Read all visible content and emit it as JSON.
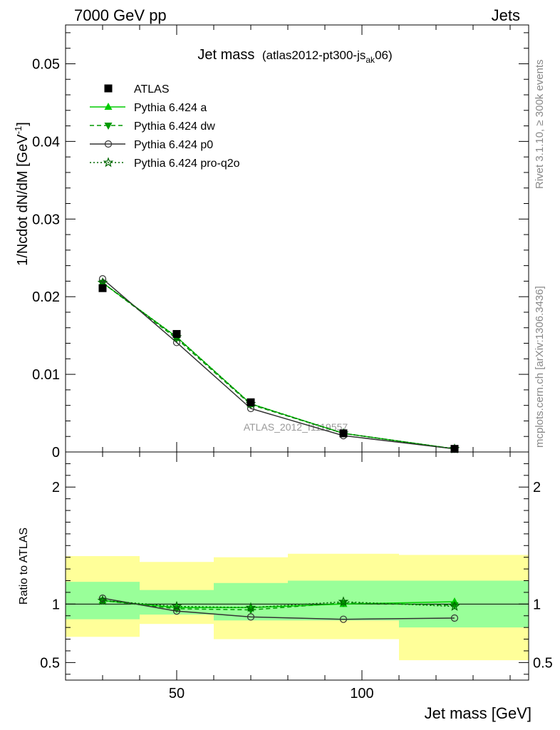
{
  "header": {
    "left": "7000 GeV pp",
    "right": "Jets"
  },
  "side": {
    "rivet": "Rivet 3.1.10, ≥ 300k events",
    "mcplots": "mcplots.cern.ch [arXiv:1306.3436]"
  },
  "watermark": "ATLAS_2012_I1119557",
  "colors": {
    "band_outer": "#ffff99",
    "band_inner": "#99ff99",
    "a": "#00cc00",
    "dw": "#009900",
    "p0": "#333333",
    "pro": "#006600"
  },
  "chart_data": [
    {
      "id": "main",
      "type": "line",
      "title": "Jet mass",
      "subtitle": "(atlas2012-pt300-js",
      "subtitle_sub": "ak",
      "subtitle_end": "06)",
      "ylabel": "1/Ncdot dN/dM [GeV",
      "ylabel_sup": "-1",
      "ylabel_end": "]",
      "xlim": [
        20,
        145
      ],
      "ylim": [
        0,
        0.055
      ],
      "yticks": [
        0,
        0.01,
        0.02,
        0.03,
        0.04,
        0.05
      ],
      "yticklabels": [
        "0",
        "0.01",
        "0.02",
        "0.03",
        "0.04",
        "0.05"
      ],
      "legend_position": "top-left",
      "series": [
        {
          "name": "ATLAS",
          "marker": "square",
          "x": [
            30,
            50,
            70,
            95,
            125
          ],
          "values": [
            0.0211,
            0.0152,
            0.0064,
            0.0024,
            0.0004
          ]
        },
        {
          "name": "Pythia 6.424 a",
          "marker": "triangle-up",
          "x": [
            30,
            50,
            70,
            95,
            125
          ],
          "values": [
            0.0218,
            0.0148,
            0.0062,
            0.0024,
            0.0004
          ]
        },
        {
          "name": "Pythia 6.424 dw",
          "marker": "triangle-down",
          "x": [
            30,
            50,
            70,
            95,
            125
          ],
          "values": [
            0.0218,
            0.0146,
            0.0061,
            0.0024,
            0.0004
          ]
        },
        {
          "name": "Pythia 6.424 p0",
          "marker": "circle",
          "x": [
            30,
            50,
            70,
            95,
            125
          ],
          "values": [
            0.0223,
            0.0141,
            0.0056,
            0.0021,
            0.0004
          ]
        },
        {
          "name": "Pythia 6.424 pro-q2o",
          "marker": "star",
          "x": [
            30,
            50,
            70,
            95,
            125
          ],
          "values": [
            0.0218,
            0.0148,
            0.0062,
            0.0024,
            0.0004
          ]
        }
      ]
    },
    {
      "id": "ratio",
      "type": "line",
      "ylabel": "Ratio to ATLAS",
      "xlabel": "Jet mass [GeV]",
      "xlim": [
        20,
        145
      ],
      "ylim": [
        0.35,
        2.3
      ],
      "yticks": [
        0.5,
        1,
        2
      ],
      "yticklabels": [
        "0.5",
        "1",
        "2"
      ],
      "xticks": [
        50,
        100
      ],
      "xticklabels": [
        "50",
        "100"
      ],
      "bins": [
        [
          20,
          40
        ],
        [
          40,
          60
        ],
        [
          60,
          80
        ],
        [
          80,
          110
        ],
        [
          110,
          145
        ]
      ],
      "band_outer": [
        [
          0.72,
          1.41
        ],
        [
          0.83,
          1.36
        ],
        [
          0.7,
          1.4
        ],
        [
          0.7,
          1.43
        ],
        [
          0.52,
          1.42
        ]
      ],
      "band_inner": [
        [
          0.87,
          1.19
        ],
        [
          0.91,
          1.12
        ],
        [
          0.86,
          1.18
        ],
        [
          0.86,
          1.2
        ],
        [
          0.8,
          1.2
        ]
      ],
      "series": [
        {
          "name": "Pythia 6.424 a",
          "marker": "triangle-up",
          "x": [
            30,
            50,
            70,
            95,
            125
          ],
          "values": [
            1.03,
            0.97,
            0.97,
            1.0,
            1.02
          ]
        },
        {
          "name": "Pythia 6.424 dw",
          "marker": "triangle-down",
          "x": [
            30,
            50,
            70,
            95,
            125
          ],
          "values": [
            1.03,
            0.96,
            0.95,
            1.01,
            0.99
          ]
        },
        {
          "name": "Pythia 6.424 p0",
          "marker": "circle",
          "x": [
            30,
            50,
            70,
            95,
            125
          ],
          "values": [
            1.05,
            0.94,
            0.89,
            0.87,
            0.88
          ]
        },
        {
          "name": "Pythia 6.424 pro-q2o",
          "marker": "star",
          "x": [
            30,
            50,
            70,
            95,
            125
          ],
          "values": [
            1.03,
            0.98,
            0.97,
            1.02,
            0.98
          ]
        }
      ]
    }
  ]
}
